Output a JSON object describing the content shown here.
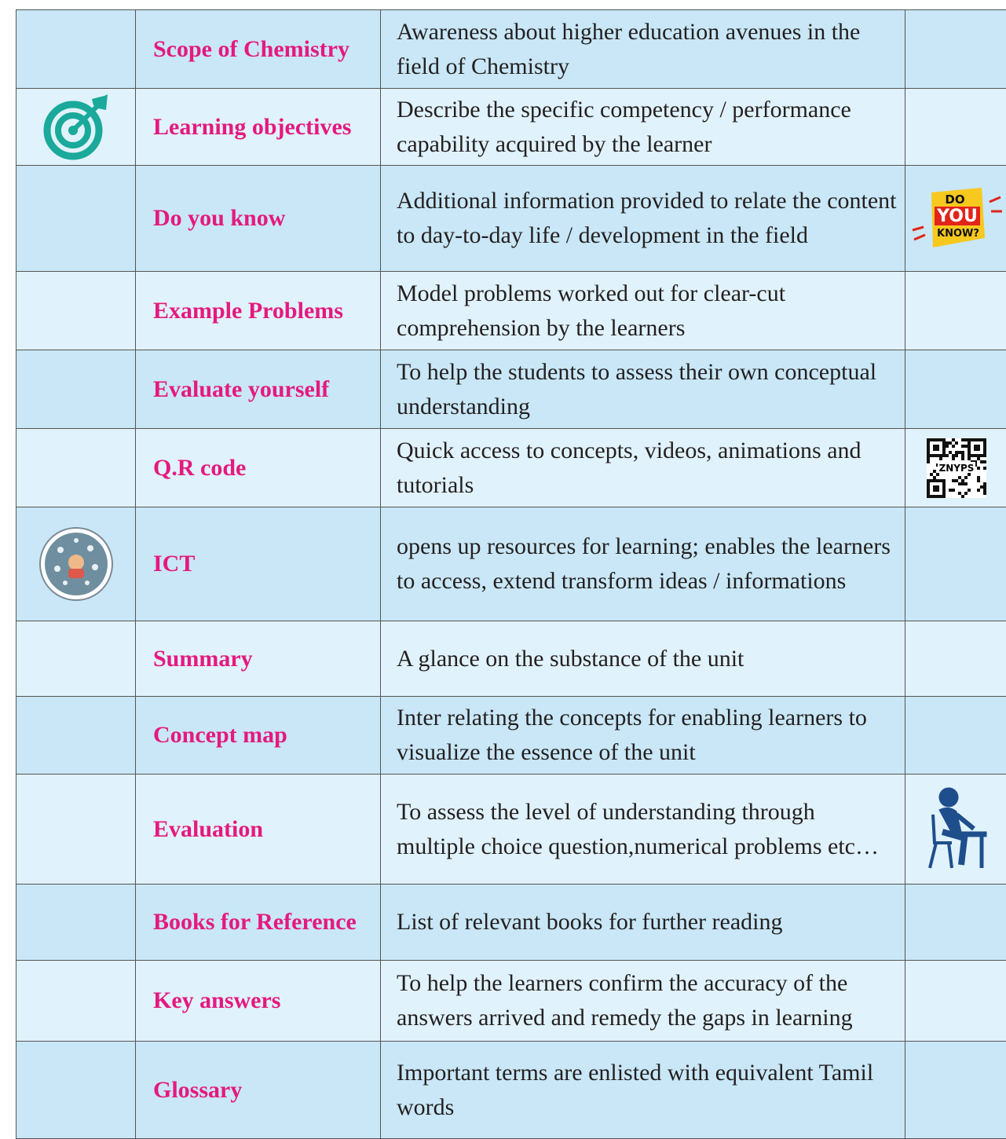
{
  "table": {
    "rows": [
      {
        "term": "Scope of Chemistry",
        "description": "Awareness about higher education avenues in the field of Chemistry"
      },
      {
        "term": "Learning objectives",
        "description": "Describe the specific competency / performance capability acquired by the learner"
      },
      {
        "term": "Do you know",
        "description": "Additional information provided to relate the content to day-to-day life / development in the field"
      },
      {
        "term": "Example Problems",
        "description": "Model problems worked out for clear-cut comprehension by the learners"
      },
      {
        "term": "Evaluate yourself",
        "description": "To help the students to assess their own conceptual understanding"
      },
      {
        "term": "Q.R code",
        "description": "Quick access to concepts, videos, animations and tutorials"
      },
      {
        "term": "ICT",
        "description": "opens up resources for learning; enables the learners to access, extend transform ideas / informations"
      },
      {
        "term": "Summary",
        "description": "A glance on the substance of the unit"
      },
      {
        "term": "Concept map",
        "description": "Inter relating the concepts for enabling learners to visualize the essence of the unit"
      },
      {
        "term": "Evaluation",
        "description": "To assess the level of understanding through multiple choice question,numerical problems etc…"
      },
      {
        "term": "Books for Reference",
        "description": "List of relevant books for further reading"
      },
      {
        "term": "Key answers",
        "description": "To help the learners confirm the accuracy of the answers arrived and remedy the gaps in learning"
      },
      {
        "term": "Glossary",
        "description": "Important terms are enlisted with equivalent Tamil words"
      }
    ]
  },
  "icons": {
    "do_you_know": [
      "DO",
      "YOU",
      "KNOW?"
    ],
    "qr_code": "ZNYPS"
  }
}
